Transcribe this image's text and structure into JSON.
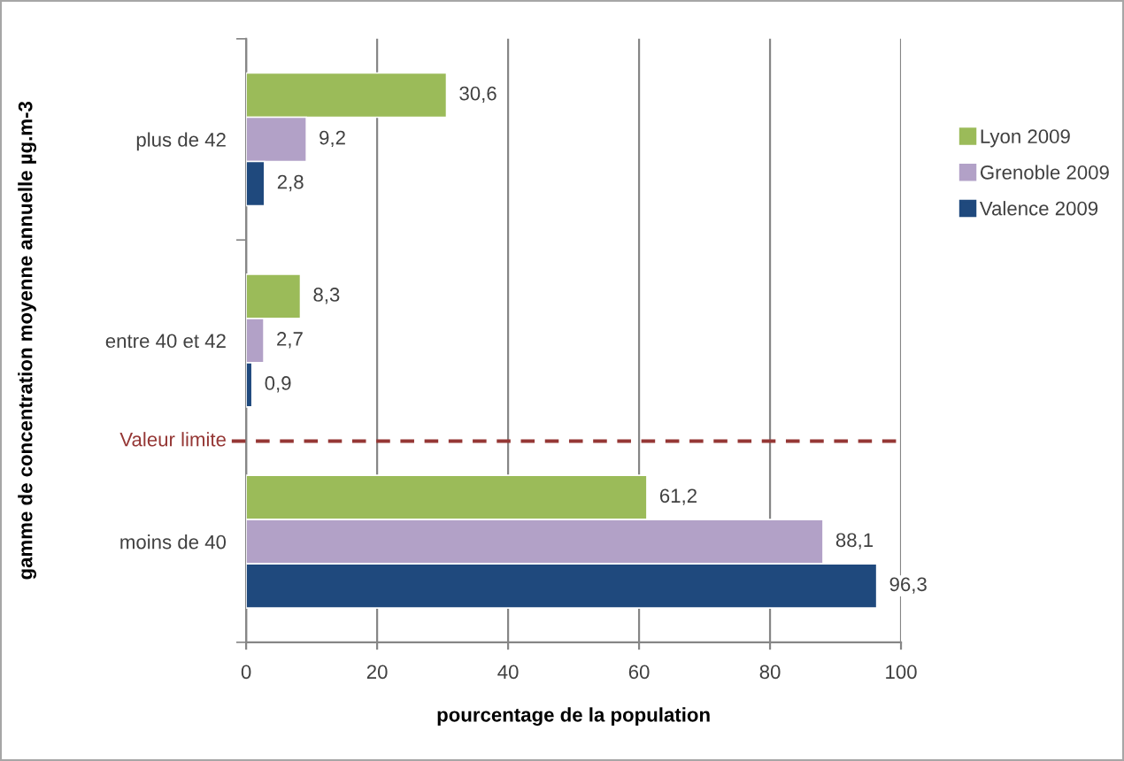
{
  "chart_data": {
    "type": "bar",
    "orientation": "horizontal",
    "xlabel": "pourcentage de la population",
    "ylabel": "gamme de concentration moyenne annuelle µg.m-3",
    "categories": [
      "plus de 42",
      "entre 40 et 42",
      "moins de 40"
    ],
    "series": [
      {
        "name": "Lyon 2009",
        "color": "#9bbb59",
        "values": [
          30.6,
          8.3,
          61.2
        ],
        "value_labels": [
          "30,6",
          "8,3",
          "61,2"
        ]
      },
      {
        "name": "Grenoble 2009",
        "color": "#b2a1c7",
        "values": [
          9.2,
          2.7,
          88.1
        ],
        "value_labels": [
          "9,2",
          "2,7",
          "88,1"
        ]
      },
      {
        "name": "Valence 2009",
        "color": "#1f497d",
        "values": [
          2.8,
          0.9,
          96.3
        ],
        "value_labels": [
          "2,8",
          "0,9",
          "96,3"
        ]
      }
    ],
    "xlim": [
      0,
      100
    ],
    "xticks": [
      0,
      20,
      40,
      60,
      80,
      100
    ],
    "grid": "x",
    "legend": "right",
    "ref_lines": [
      {
        "axis": "y",
        "value": "moins de 40",
        "label": "Valeur limite",
        "color": "#953735",
        "line_style": "dashed"
      }
    ]
  }
}
